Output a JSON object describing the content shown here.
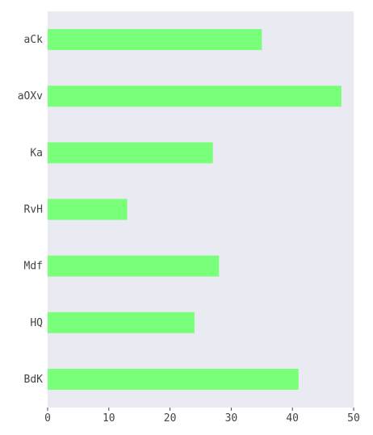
{
  "chart_data": {
    "type": "bar",
    "orientation": "horizontal",
    "categories": [
      "aCk",
      "aOXv",
      "Ka",
      "RvH",
      "Mdf",
      "HQ",
      "BdK"
    ],
    "values": [
      35,
      48,
      27,
      13,
      28,
      24,
      41
    ],
    "xlim": [
      0,
      50
    ],
    "xticks": [
      0,
      10,
      20,
      30,
      40,
      50
    ],
    "title": "",
    "xlabel": "",
    "ylabel": "",
    "grid": false,
    "legend": "none",
    "colors": {
      "bar": "#79ff79",
      "plot_background": "#eaeaf2",
      "text": "#444444"
    }
  }
}
